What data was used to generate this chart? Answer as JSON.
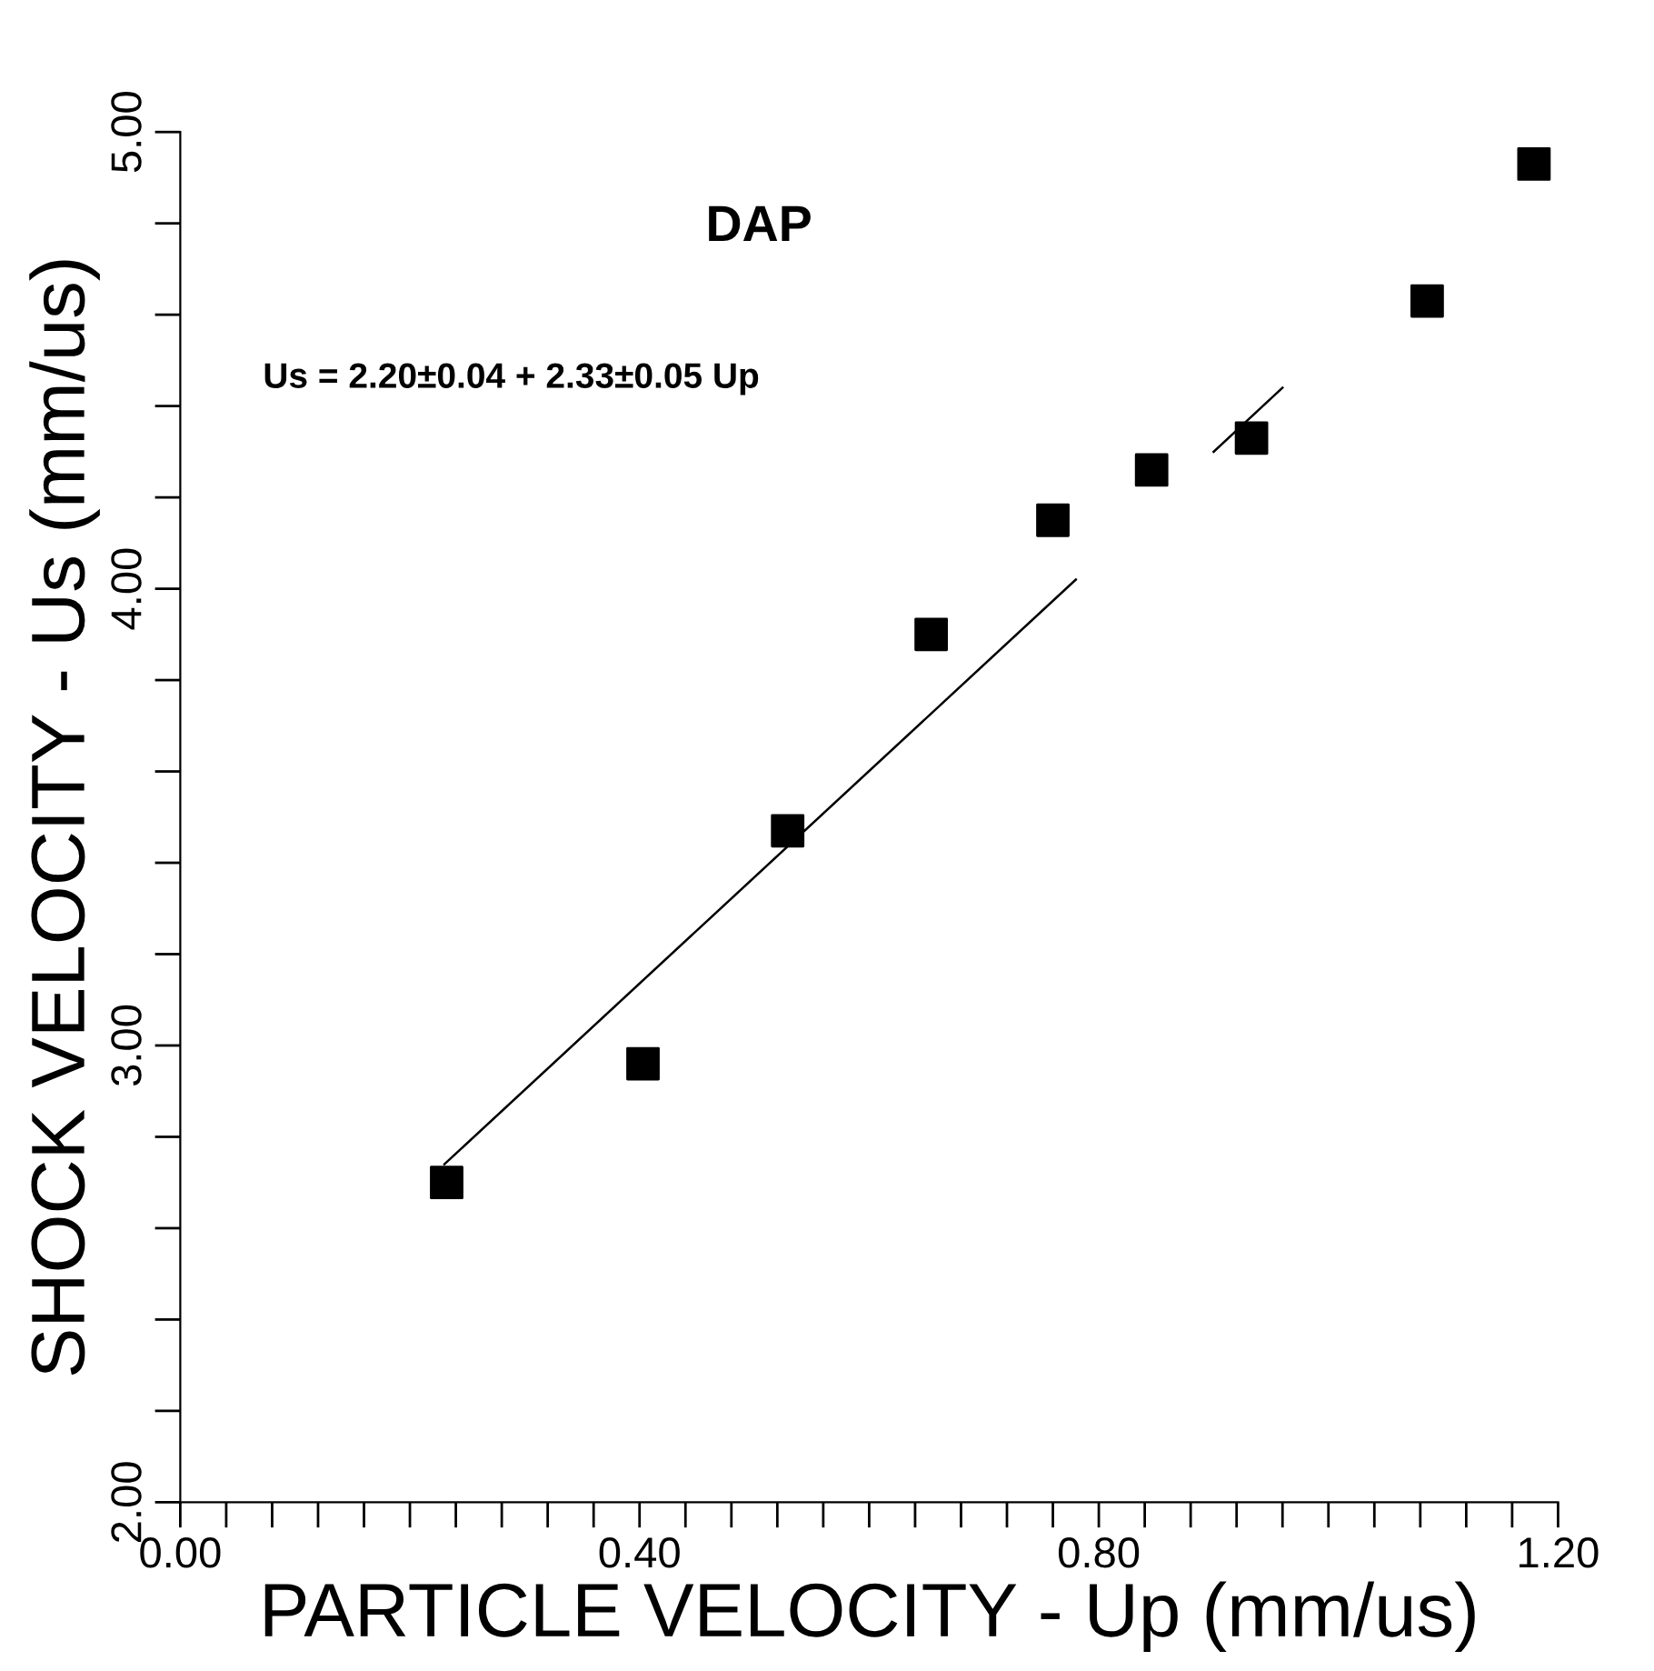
{
  "chart_data": {
    "type": "scatter",
    "title": "DAP",
    "xlabel": "PARTICLE VELOCITY - Up (mm/us)",
    "ylabel": "SHOCK VELOCITY - Us (mm/us)",
    "annotations": [
      "Us = 2.20±0.04 + 2.33±0.05 Up"
    ],
    "xlim": [
      0,
      1.2
    ],
    "ylim": [
      2,
      5
    ],
    "xticks": [
      {
        "value": 0,
        "label": "0.00"
      },
      {
        "value": 0.04,
        "label": null
      },
      {
        "value": 0.08,
        "label": null
      },
      {
        "value": 0.12,
        "label": null
      },
      {
        "value": 0.16,
        "label": null
      },
      {
        "value": 0.2,
        "label": null
      },
      {
        "value": 0.24,
        "label": null
      },
      {
        "value": 0.28,
        "label": null
      },
      {
        "value": 0.32,
        "label": null
      },
      {
        "value": 0.36,
        "label": null
      },
      {
        "value": 0.4,
        "label": "0.40"
      },
      {
        "value": 0.44,
        "label": null
      },
      {
        "value": 0.48,
        "label": null
      },
      {
        "value": 0.52,
        "label": null
      },
      {
        "value": 0.56,
        "label": null
      },
      {
        "value": 0.6,
        "label": null
      },
      {
        "value": 0.64,
        "label": null
      },
      {
        "value": 0.68,
        "label": null
      },
      {
        "value": 0.72,
        "label": null
      },
      {
        "value": 0.76,
        "label": null
      },
      {
        "value": 0.8,
        "label": "0.80"
      },
      {
        "value": 0.84,
        "label": null
      },
      {
        "value": 0.88,
        "label": null
      },
      {
        "value": 0.92,
        "label": null
      },
      {
        "value": 0.96,
        "label": null
      },
      {
        "value": 1.0,
        "label": null
      },
      {
        "value": 1.04,
        "label": null
      },
      {
        "value": 1.08,
        "label": null
      },
      {
        "value": 1.12,
        "label": null
      },
      {
        "value": 1.16,
        "label": null
      },
      {
        "value": 1.2,
        "label": "1.20"
      }
    ],
    "yticks": [
      {
        "value": 2,
        "label": "2.00"
      },
      {
        "value": 2.2,
        "label": null
      },
      {
        "value": 2.4,
        "label": null
      },
      {
        "value": 2.6,
        "label": null
      },
      {
        "value": 2.8,
        "label": null
      },
      {
        "value": 3,
        "label": "3.00"
      },
      {
        "value": 3.2,
        "label": null
      },
      {
        "value": 3.4,
        "label": null
      },
      {
        "value": 3.6,
        "label": null
      },
      {
        "value": 3.8,
        "label": null
      },
      {
        "value": 4,
        "label": "4.00"
      },
      {
        "value": 4.2,
        "label": null
      },
      {
        "value": 4.4,
        "label": null
      },
      {
        "value": 4.6,
        "label": null
      },
      {
        "value": 4.8,
        "label": null
      },
      {
        "value": 5,
        "label": "5.00"
      }
    ],
    "grid": false,
    "legend": false,
    "series": [
      {
        "color": "#000000",
        "marker": "square",
        "x": [
          0.232,
          0.403,
          0.529,
          0.654,
          0.76,
          0.846,
          0.933,
          1.086,
          1.179
        ],
        "values": [
          2.7,
          2.96,
          3.47,
          3.9,
          4.15,
          4.26,
          4.33,
          4.63,
          4.93
        ]
      },
      {
        "type": "line",
        "color": "#000000",
        "marker": "none",
        "line_style": "solid",
        "x": [
          0.23,
          0.78,
          0.85,
          0.9,
          0.96
        ],
        "values": [
          2.74,
          4.02,
          null,
          4.3,
          4.44
        ]
      }
    ]
  }
}
